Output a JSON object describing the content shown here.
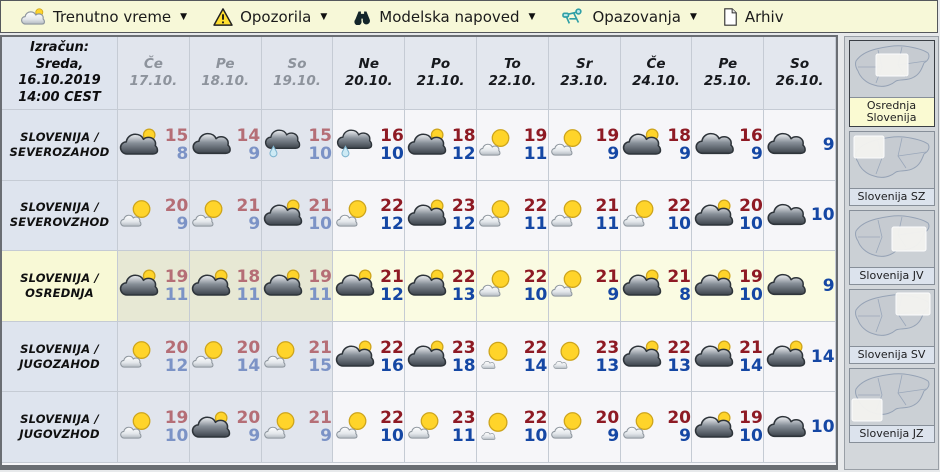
{
  "menu": {
    "items": [
      {
        "label": "Trenutno vreme",
        "icon": "weather-icon",
        "dropdown": true
      },
      {
        "label": "Opozorila",
        "icon": "warning-icon",
        "dropdown": true
      },
      {
        "label": "Modelska napoved",
        "icon": "binoculars-icon",
        "dropdown": true
      },
      {
        "label": "Opazovanja",
        "icon": "observer-icon",
        "dropdown": true
      },
      {
        "label": "Arhiv",
        "icon": "document-icon",
        "dropdown": false
      }
    ]
  },
  "table": {
    "run": [
      "Izračun:",
      "Sreda,",
      "16.10.2019",
      "14:00 CEST"
    ],
    "columns": [
      {
        "day": "Če",
        "date": "17.10.",
        "past": true
      },
      {
        "day": "Pe",
        "date": "18.10.",
        "past": true
      },
      {
        "day": "So",
        "date": "19.10.",
        "past": true
      },
      {
        "day": "Ne",
        "date": "20.10.",
        "past": false
      },
      {
        "day": "Po",
        "date": "21.10.",
        "past": false
      },
      {
        "day": "To",
        "date": "22.10.",
        "past": false
      },
      {
        "day": "Sr",
        "date": "23.10.",
        "past": false
      },
      {
        "day": "Če",
        "date": "24.10.",
        "past": false
      },
      {
        "day": "Pe",
        "date": "25.10.",
        "past": false
      },
      {
        "day": "So",
        "date": "26.10.",
        "past": false
      }
    ],
    "rows": [
      {
        "label1": "SLOVENIJA /",
        "label2": "SEVEROZAHOD",
        "highlighted": false,
        "cells": [
          {
            "icon": "cloud-sun",
            "high": "15",
            "low": "8"
          },
          {
            "icon": "cloudy",
            "high": "14",
            "low": "9"
          },
          {
            "icon": "rain-cloud",
            "high": "15",
            "low": "10"
          },
          {
            "icon": "rain-cloud",
            "high": "16",
            "low": "10"
          },
          {
            "icon": "cloud-sun",
            "high": "18",
            "low": "12"
          },
          {
            "icon": "sun-cloud",
            "high": "19",
            "low": "11"
          },
          {
            "icon": "sun-cloud",
            "high": "19",
            "low": "9"
          },
          {
            "icon": "cloud-sun",
            "high": "18",
            "low": "9"
          },
          {
            "icon": "cloudy",
            "high": "16",
            "low": "9"
          },
          {
            "icon": "cloudy",
            "high": null,
            "low": "9"
          }
        ]
      },
      {
        "label1": "SLOVENIJA /",
        "label2": "SEVEROVZHOD",
        "highlighted": false,
        "cells": [
          {
            "icon": "sun-cloud",
            "high": "20",
            "low": "9"
          },
          {
            "icon": "sun-cloud",
            "high": "21",
            "low": "9"
          },
          {
            "icon": "cloud-sun",
            "high": "21",
            "low": "10"
          },
          {
            "icon": "sun-cloud",
            "high": "22",
            "low": "12"
          },
          {
            "icon": "cloud-sun",
            "high": "23",
            "low": "12"
          },
          {
            "icon": "sun-cloud",
            "high": "22",
            "low": "11"
          },
          {
            "icon": "sun-cloud",
            "high": "21",
            "low": "11"
          },
          {
            "icon": "sun-cloud",
            "high": "22",
            "low": "10"
          },
          {
            "icon": "cloud-sun",
            "high": "20",
            "low": "10"
          },
          {
            "icon": "cloudy",
            "high": null,
            "low": "10"
          }
        ]
      },
      {
        "label1": "SLOVENIJA /",
        "label2": "OSREDNJA",
        "highlighted": true,
        "cells": [
          {
            "icon": "cloud-sun",
            "high": "19",
            "low": "11"
          },
          {
            "icon": "cloud-sun",
            "high": "18",
            "low": "11"
          },
          {
            "icon": "cloud-sun",
            "high": "19",
            "low": "11"
          },
          {
            "icon": "cloud-sun",
            "high": "21",
            "low": "12"
          },
          {
            "icon": "cloud-sun",
            "high": "22",
            "low": "13"
          },
          {
            "icon": "sun-cloud",
            "high": "22",
            "low": "10"
          },
          {
            "icon": "sun-cloud",
            "high": "21",
            "low": "9"
          },
          {
            "icon": "cloud-sun",
            "high": "21",
            "low": "8"
          },
          {
            "icon": "cloud-sun",
            "high": "19",
            "low": "10"
          },
          {
            "icon": "cloudy",
            "high": null,
            "low": "9"
          }
        ]
      },
      {
        "label1": "SLOVENIJA /",
        "label2": "JUGOZAHOD",
        "highlighted": false,
        "cells": [
          {
            "icon": "sun-cloud",
            "high": "20",
            "low": "12"
          },
          {
            "icon": "sun-cloud",
            "high": "20",
            "low": "14"
          },
          {
            "icon": "sun-cloud",
            "high": "21",
            "low": "15"
          },
          {
            "icon": "cloud-sun",
            "high": "22",
            "low": "16"
          },
          {
            "icon": "cloud-sun",
            "high": "23",
            "low": "18"
          },
          {
            "icon": "sun",
            "high": "22",
            "low": "14"
          },
          {
            "icon": "sun",
            "high": "23",
            "low": "13"
          },
          {
            "icon": "cloud-sun",
            "high": "22",
            "low": "13"
          },
          {
            "icon": "cloud-sun",
            "high": "21",
            "low": "14"
          },
          {
            "icon": "cloud-sun",
            "high": null,
            "low": "14"
          }
        ]
      },
      {
        "label1": "SLOVENIJA /",
        "label2": "JUGOVZHOD",
        "highlighted": false,
        "cells": [
          {
            "icon": "sun-cloud",
            "high": "19",
            "low": "10"
          },
          {
            "icon": "cloud-sun",
            "high": "20",
            "low": "9"
          },
          {
            "icon": "sun-cloud",
            "high": "21",
            "low": "9"
          },
          {
            "icon": "sun-cloud",
            "high": "22",
            "low": "10"
          },
          {
            "icon": "sun-cloud",
            "high": "23",
            "low": "11"
          },
          {
            "icon": "sun",
            "high": "22",
            "low": "10"
          },
          {
            "icon": "sun-cloud",
            "high": "20",
            "low": "9"
          },
          {
            "icon": "sun-cloud",
            "high": "20",
            "low": "9"
          },
          {
            "icon": "cloud-sun",
            "high": "19",
            "low": "10"
          },
          {
            "icon": "cloudy",
            "high": null,
            "low": "10"
          }
        ]
      }
    ]
  },
  "sidebar": {
    "maps": [
      {
        "label": "Osrednja Slovenija",
        "selected": true,
        "region": "center"
      },
      {
        "label": "Slovenija SZ",
        "selected": false,
        "region": "nw"
      },
      {
        "label": "Slovenija JV",
        "selected": false,
        "region": "se"
      },
      {
        "label": "Slovenija SV",
        "selected": false,
        "region": "ne"
      },
      {
        "label": "Slovenija JZ",
        "selected": false,
        "region": "sw"
      }
    ]
  },
  "colors": {
    "menu_bg": "#f7f8d8",
    "temp_high": "#8e1a24",
    "temp_low": "#1547a4",
    "temp_high_past": "#b56e76",
    "temp_low_past": "#7c93c6",
    "highlight_row_bg": "#fafbe2",
    "selected_label_bg": "#fafad2"
  }
}
